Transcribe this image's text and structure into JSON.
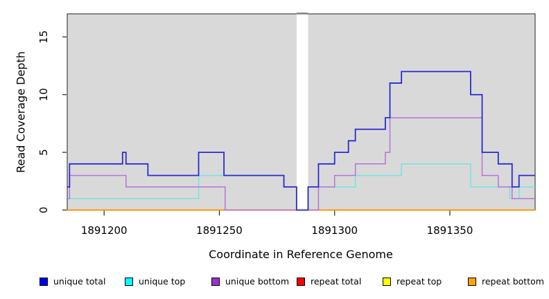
{
  "chart_data": {
    "type": "line",
    "subtype": "step-coverage",
    "title": "",
    "xlabel": "Coordinate in Reference Genome",
    "ylabel": "Read Coverage Depth",
    "xlim": [
      1891184,
      1891387
    ],
    "ylim": [
      0,
      17
    ],
    "grid": false,
    "x_ticks": [
      {
        "value": 1891200,
        "label": "1891200"
      },
      {
        "value": 1891250,
        "label": "1891250"
      },
      {
        "value": 1891300,
        "label": "1891300"
      },
      {
        "value": 1891350,
        "label": "1891350"
      }
    ],
    "y_ticks": [
      {
        "value": 0,
        "label": "0"
      },
      {
        "value": 5,
        "label": "5"
      },
      {
        "value": 10,
        "label": "10"
      },
      {
        "value": 15,
        "label": "15"
      }
    ],
    "masked_region": {
      "from": 1891283.5,
      "to": 1891288.5
    },
    "plot_bg_color": "#d9d9d9",
    "series": [
      {
        "name": "unique total",
        "line_color": "#2a2ad2",
        "line_width": 1.8,
        "steps": [
          [
            1891184,
            2
          ],
          [
            1891185,
            4
          ],
          [
            1891208,
            5
          ],
          [
            1891209.5,
            4
          ],
          [
            1891219,
            3
          ],
          [
            1891241,
            5
          ],
          [
            1891252,
            3
          ],
          [
            1891278,
            2
          ],
          [
            1891283.5,
            0
          ],
          [
            1891288.5,
            2
          ],
          [
            1891293,
            4
          ],
          [
            1891300,
            5
          ],
          [
            1891306,
            6
          ],
          [
            1891309,
            7
          ],
          [
            1891322,
            8
          ],
          [
            1891324,
            11
          ],
          [
            1891329,
            12
          ],
          [
            1891359,
            10
          ],
          [
            1891364,
            5
          ],
          [
            1891371,
            4
          ],
          [
            1891377,
            2
          ],
          [
            1891380,
            3
          ]
        ]
      },
      {
        "name": "unique top",
        "line_color": "#74e3e3",
        "line_width": 1.5,
        "steps": [
          [
            1891184,
            1
          ],
          [
            1891241,
            3
          ],
          [
            1891278,
            2
          ],
          [
            1891283.5,
            0
          ],
          [
            1891288.5,
            2
          ],
          [
            1891309,
            3
          ],
          [
            1891329,
            4
          ],
          [
            1891359,
            2
          ],
          [
            1891376,
            1
          ],
          [
            1891380,
            2
          ]
        ]
      },
      {
        "name": "unique bottom",
        "line_color": "#b474da",
        "line_width": 1.5,
        "steps": [
          [
            1891184,
            1
          ],
          [
            1891185,
            3
          ],
          [
            1891209.5,
            2
          ],
          [
            1891252.5,
            0
          ],
          [
            1891293,
            2
          ],
          [
            1891300,
            3
          ],
          [
            1891309,
            4
          ],
          [
            1891322,
            5
          ],
          [
            1891324,
            8
          ],
          [
            1891364,
            3
          ],
          [
            1891371,
            2
          ],
          [
            1891377,
            1
          ]
        ]
      },
      {
        "name": "repeat total",
        "line_color": "#e00000",
        "line_width": 1.5,
        "steps": [
          [
            1891184,
            0
          ]
        ]
      },
      {
        "name": "repeat top",
        "line_color": "#ffff00",
        "line_width": 1.5,
        "steps": [
          [
            1891184,
            0
          ]
        ]
      },
      {
        "name": "repeat bottom",
        "line_color": "#ff9100",
        "line_width": 1.8,
        "steps": [
          [
            1891184,
            0
          ]
        ]
      }
    ],
    "legend": {
      "position": "bottom",
      "items": [
        {
          "label": "unique total",
          "swatch_color": "#0000ee"
        },
        {
          "label": "unique top",
          "swatch_color": "#00ffff"
        },
        {
          "label": "unique bottom",
          "swatch_color": "#9932cc"
        },
        {
          "label": "repeat total",
          "swatch_color": "#ff0000"
        },
        {
          "label": "repeat top",
          "swatch_color": "#ffff00"
        },
        {
          "label": "repeat bottom",
          "swatch_color": "#ffa500"
        }
      ]
    }
  }
}
